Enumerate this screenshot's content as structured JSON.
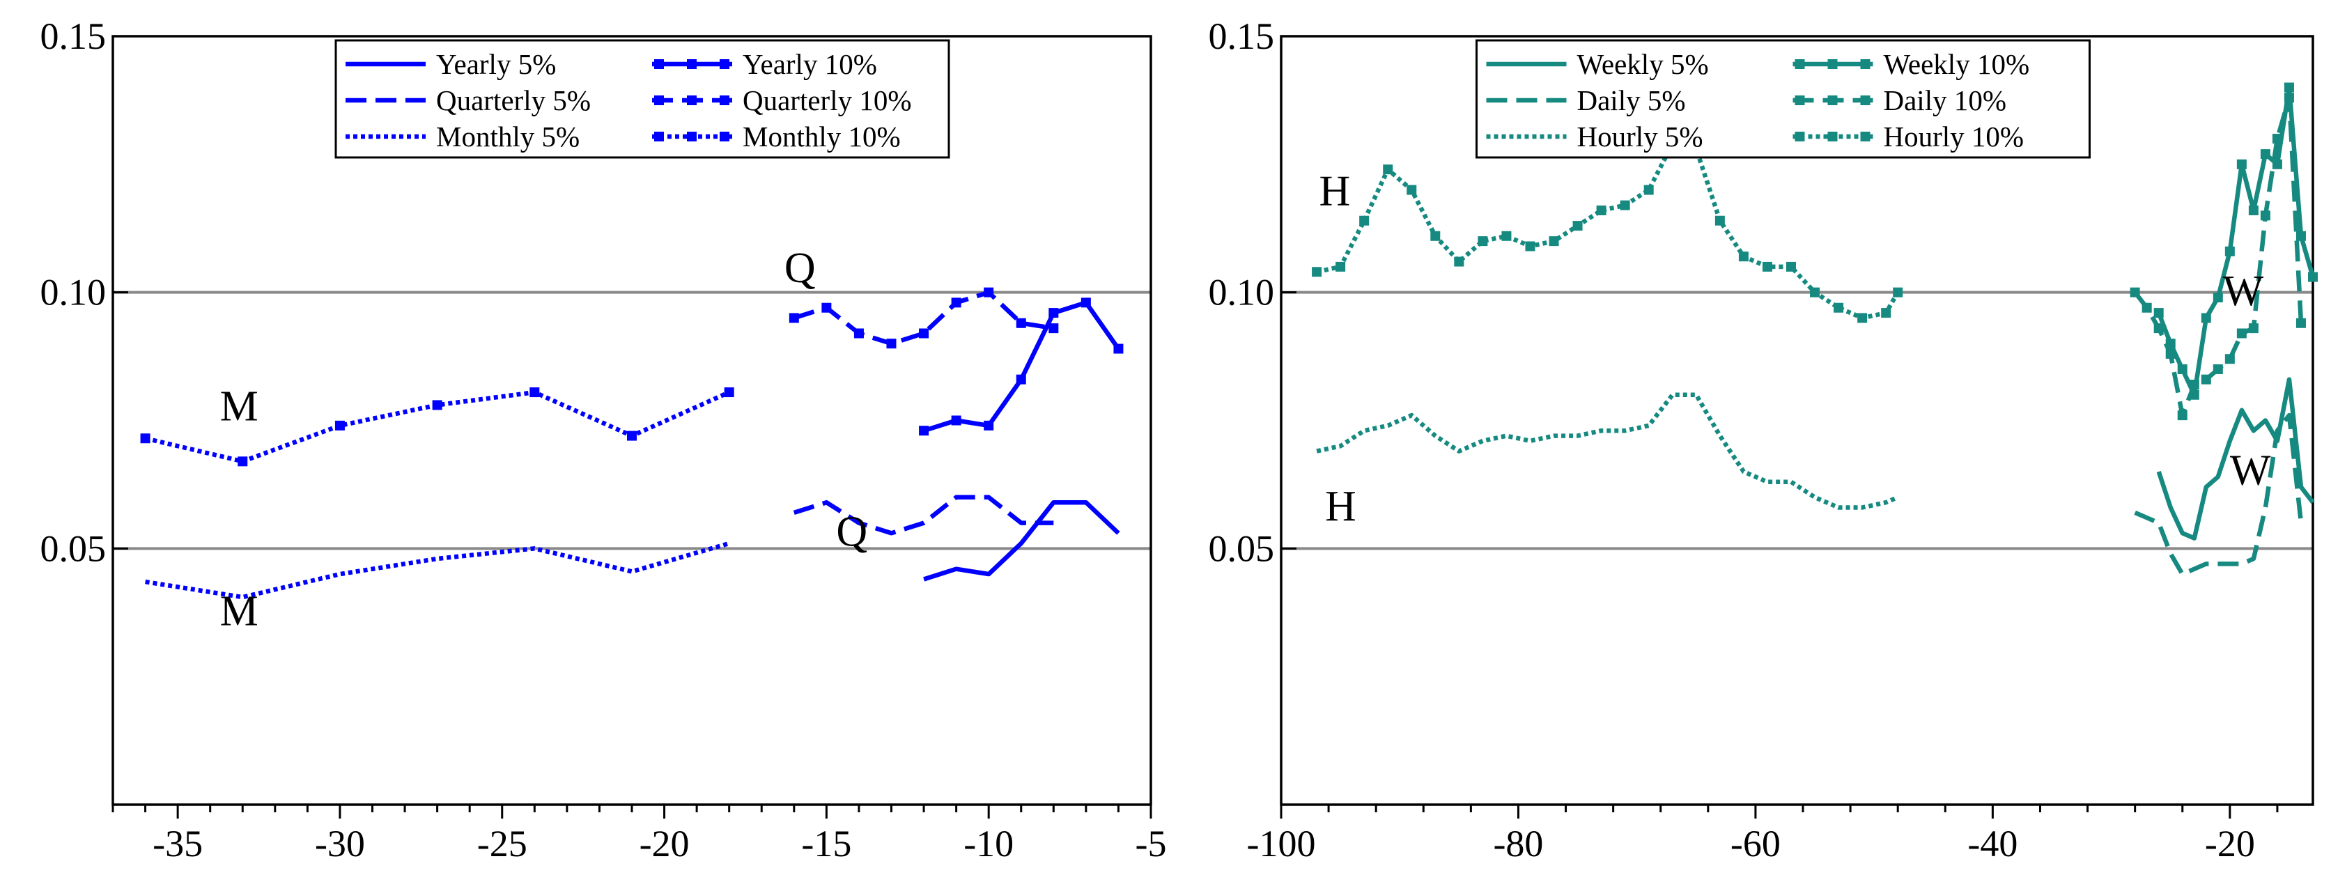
{
  "chart_data": [
    {
      "type": "line",
      "panel": "left",
      "title": "",
      "xlabel": "",
      "ylabel": "",
      "xlim": [
        -37,
        -5
      ],
      "ylim": [
        0,
        0.15
      ],
      "xticks": [
        -35,
        -30,
        -25,
        -20,
        -15,
        -10,
        -5
      ],
      "xtick_labels": [
        "-35",
        "-30",
        "-25",
        "-20",
        "-15",
        "-10",
        "-5"
      ],
      "yticks": [
        0.05,
        0.1,
        0.15
      ],
      "ytick_labels": [
        "0.05",
        "0.10",
        "0.15"
      ],
      "reference_lines": [
        0.05,
        0.1
      ],
      "legend_position": "top-center",
      "series": [
        {
          "name": "Yearly 5%",
          "color": "#0000ff",
          "dash": "solid",
          "marker": false,
          "x": [
            -12,
            -11,
            -10,
            -9,
            -8,
            -7,
            -6
          ],
          "y": [
            0.044,
            0.046,
            0.045,
            0.051,
            0.059,
            0.059,
            0.053
          ]
        },
        {
          "name": "Quarterly 5%",
          "color": "#0000ff",
          "dash": "dashed",
          "marker": false,
          "x": [
            -16,
            -15,
            -14,
            -13,
            -12,
            -11,
            -10,
            -9,
            -8
          ],
          "y": [
            0.057,
            0.059,
            0.055,
            0.053,
            0.055,
            0.06,
            0.06,
            0.055,
            0.055
          ]
        },
        {
          "name": "Monthly 5%",
          "color": "#0000ff",
          "dash": "dotted",
          "marker": false,
          "x": [
            -36,
            -33,
            -30,
            -27,
            -24,
            -21,
            -18
          ],
          "y": [
            0.0435,
            0.0405,
            0.045,
            0.048,
            0.05,
            0.0455,
            0.051
          ]
        },
        {
          "name": "Yearly 10%",
          "color": "#0000ff",
          "dash": "solid",
          "marker": true,
          "x": [
            -12,
            -11,
            -10,
            -9,
            -8,
            -7,
            -6
          ],
          "y": [
            0.073,
            0.075,
            0.074,
            0.083,
            0.096,
            0.098,
            0.089
          ]
        },
        {
          "name": "Quarterly 10%",
          "color": "#0000ff",
          "dash": "dashed",
          "marker": true,
          "x": [
            -16,
            -15,
            -14,
            -13,
            -12,
            -11,
            -10,
            -9,
            -8
          ],
          "y": [
            0.095,
            0.097,
            0.092,
            0.09,
            0.092,
            0.098,
            0.1,
            0.094,
            0.093
          ]
        },
        {
          "name": "Monthly 10%",
          "color": "#0000ff",
          "dash": "dotted",
          "marker": true,
          "x": [
            -36,
            -33,
            -30,
            -27,
            -24,
            -21,
            -18
          ],
          "y": [
            0.0715,
            0.067,
            0.074,
            0.078,
            0.0805,
            0.072,
            0.0805
          ]
        }
      ],
      "annotations": [
        {
          "text": "M",
          "x": -33.7,
          "y": 0.075
        },
        {
          "text": "M",
          "x": -33.7,
          "y": 0.035
        },
        {
          "text": "Q",
          "x": -16.3,
          "y": 0.102
        },
        {
          "text": "Q",
          "x": -14.7,
          "y": 0.0505
        }
      ]
    },
    {
      "type": "line",
      "panel": "right",
      "title": "",
      "xlabel": "",
      "ylabel": "",
      "xlim": [
        -100,
        -13
      ],
      "ylim": [
        0,
        0.15
      ],
      "xticks": [
        -100,
        -80,
        -60,
        -40,
        -20
      ],
      "xtick_labels": [
        "-100",
        "-80",
        "-60",
        "-40",
        "-20"
      ],
      "yticks": [
        0.05,
        0.1,
        0.15
      ],
      "ytick_labels": [
        "0.05",
        "0.10",
        "0.15"
      ],
      "reference_lines": [
        0.05,
        0.1
      ],
      "legend_position": "top-center",
      "series": [
        {
          "name": "Weekly 5%",
          "color": "#168a80",
          "dash": "solid",
          "marker": false,
          "x": [
            -26,
            -25,
            -24,
            -23,
            -22,
            -21,
            -20,
            -19,
            -18,
            -17,
            -16,
            -15,
            -14,
            -13
          ],
          "y": [
            0.065,
            0.058,
            0.053,
            0.052,
            0.062,
            0.064,
            0.071,
            0.077,
            0.073,
            0.075,
            0.071,
            0.083,
            0.062,
            0.059
          ]
        },
        {
          "name": "Daily 5%",
          "color": "#168a80",
          "dash": "dashed",
          "marker": false,
          "x": [
            -28,
            -27,
            -26,
            -25,
            -24,
            -23,
            -22,
            -21,
            -20,
            -19,
            -18,
            -17,
            -16,
            -15,
            -14
          ],
          "y": [
            0.057,
            0.056,
            0.055,
            0.049,
            0.045,
            0.046,
            0.047,
            0.047,
            0.047,
            0.047,
            0.048,
            0.058,
            0.073,
            0.076,
            0.055
          ]
        },
        {
          "name": "Hourly 5%",
          "color": "#168a80",
          "dash": "dotted",
          "marker": false,
          "x": [
            -97,
            -95,
            -93,
            -91,
            -89,
            -87,
            -85,
            -83,
            -81,
            -79,
            -77,
            -75,
            -73,
            -71,
            -69,
            -67,
            -65,
            -63,
            -61,
            -59,
            -57,
            -55,
            -53,
            -51,
            -49,
            -48
          ],
          "y": [
            0.069,
            0.07,
            0.073,
            0.074,
            0.076,
            0.072,
            0.069,
            0.071,
            0.072,
            0.071,
            0.072,
            0.072,
            0.073,
            0.073,
            0.074,
            0.08,
            0.08,
            0.072,
            0.065,
            0.063,
            0.063,
            0.06,
            0.058,
            0.058,
            0.059,
            0.06
          ]
        },
        {
          "name": "Weekly 10%",
          "color": "#168a80",
          "dash": "solid",
          "marker": true,
          "x": [
            -26,
            -25,
            -24,
            -23,
            -22,
            -21,
            -20,
            -19,
            -18,
            -17,
            -16,
            -15,
            -14,
            -13
          ],
          "y": [
            0.096,
            0.09,
            0.085,
            0.08,
            0.095,
            0.099,
            0.108,
            0.125,
            0.116,
            0.127,
            0.125,
            0.14,
            0.111,
            0.103
          ]
        },
        {
          "name": "Daily 10%",
          "color": "#168a80",
          "dash": "dashed",
          "marker": true,
          "x": [
            -28,
            -27,
            -26,
            -25,
            -24,
            -23,
            -22,
            -21,
            -20,
            -19,
            -18,
            -17,
            -16,
            -15,
            -14
          ],
          "y": [
            0.1,
            0.097,
            0.093,
            0.088,
            0.076,
            0.082,
            0.083,
            0.085,
            0.087,
            0.092,
            0.093,
            0.115,
            0.13,
            0.138,
            0.094
          ]
        },
        {
          "name": "Hourly 10%",
          "color": "#168a80",
          "dash": "dotted",
          "marker": true,
          "x": [
            -97,
            -95,
            -93,
            -91,
            -89,
            -87,
            -85,
            -83,
            -81,
            -79,
            -77,
            -75,
            -73,
            -71,
            -69,
            -67,
            -65,
            -63,
            -61,
            -59,
            -57,
            -55,
            -53,
            -51,
            -49,
            -48
          ],
          "y": [
            0.104,
            0.105,
            0.114,
            0.124,
            0.12,
            0.111,
            0.106,
            0.11,
            0.111,
            0.109,
            0.11,
            0.113,
            0.116,
            0.117,
            0.12,
            0.129,
            0.128,
            0.114,
            0.107,
            0.105,
            0.105,
            0.1,
            0.097,
            0.095,
            0.096,
            0.1
          ]
        }
      ],
      "annotations": [
        {
          "text": "H",
          "x": -96.8,
          "y": 0.117
        },
        {
          "text": "H",
          "x": -96.3,
          "y": 0.0555
        },
        {
          "text": "W",
          "x": -20.6,
          "y": 0.0975
        },
        {
          "text": "W",
          "x": -20.0,
          "y": 0.0625
        }
      ]
    }
  ]
}
